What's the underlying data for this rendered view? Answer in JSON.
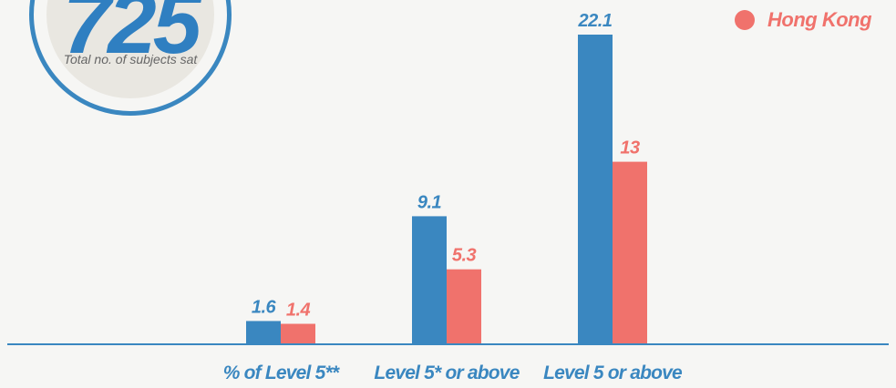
{
  "badge": {
    "number": "725",
    "caption": "Total no. of subjects sat"
  },
  "legend": {
    "series_2_label": "Hong Kong"
  },
  "colors": {
    "series_1": "#3a87c0",
    "series_2": "#f0726c",
    "axis": "#3a87c0"
  },
  "chart_data": {
    "type": "bar",
    "categories": [
      "% of Level 5**",
      "Level 5* or above",
      "Level 5 or above"
    ],
    "series": [
      {
        "values": [
          1.6,
          9.1,
          22.1
        ]
      },
      {
        "name": "Hong Kong",
        "values": [
          1.4,
          5.3,
          13
        ]
      }
    ],
    "ylim": [
      0,
      22.1
    ],
    "grid": false,
    "legend_position": "top-right"
  }
}
